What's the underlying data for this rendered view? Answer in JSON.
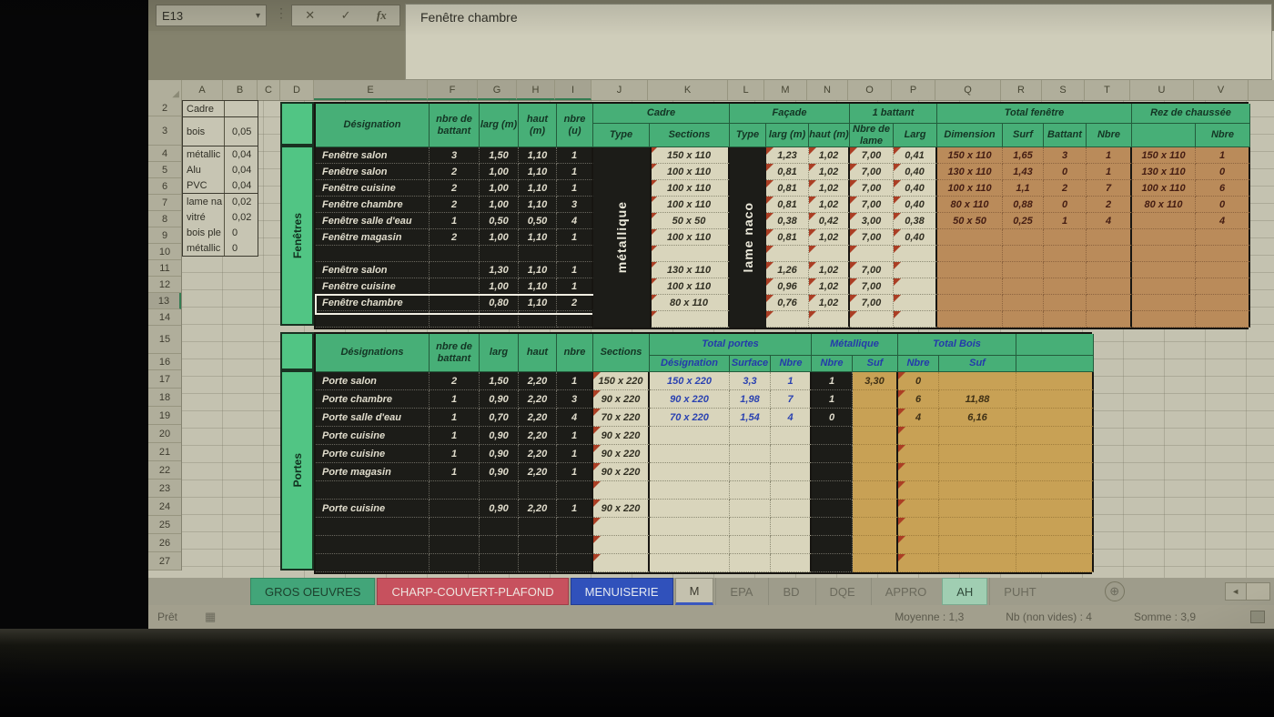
{
  "colors": {
    "header_green": "#3fb274",
    "band_green": "#49c981",
    "cell_black": "#191915",
    "cell_cream": "#dcd8bc",
    "cell_orange": "#bf8b55",
    "cell_gold": "#cda24e",
    "blue_text": "#2640bb",
    "tab_red": "#d04e5c",
    "tab_blue": "#2b50c5",
    "tab_green": "#3aa877"
  },
  "chrome": {
    "name_box": "E13",
    "formula_text": "Fenêtre chambre",
    "btn_cancel": "✕",
    "btn_enter": "✓",
    "btn_fx": "fx",
    "dots": "⋮",
    "icons": {
      "select_all": "◢",
      "name_dropdown": "▾",
      "new_sheet": "⊕",
      "tab_scroll_left": "◄",
      "status_grid": "▦"
    },
    "tabs": [
      {
        "label": "GROS OEUVRES",
        "style": "green"
      },
      {
        "label": "CHARP-COUVERT-PLAFOND",
        "style": "red"
      },
      {
        "label": "MENUISERIE",
        "style": "blue"
      },
      {
        "label": "M",
        "style": "active"
      },
      {
        "label": "EPA",
        "style": "plain"
      },
      {
        "label": "BD",
        "style": "plain"
      },
      {
        "label": "DQE",
        "style": "plain"
      },
      {
        "label": "APPRO",
        "style": "plain"
      },
      {
        "label": "AH",
        "style": "mint"
      },
      {
        "label": "PUHT",
        "style": "plain"
      }
    ],
    "status": {
      "left": "Prêt",
      "avg": "Moyenne : 1,3",
      "count": "Nb (non vides) : 4",
      "sum": "Somme : 3,9"
    }
  },
  "grid": {
    "col_letters": [
      "A",
      "B",
      "C",
      "D",
      "E",
      "F",
      "G",
      "H",
      "I",
      "J",
      "K",
      "L",
      "M",
      "N",
      "O",
      "P",
      "Q",
      "R",
      "S",
      "T",
      "U",
      "V"
    ],
    "row_numbers": [
      2,
      3,
      4,
      5,
      6,
      7,
      8,
      9,
      10,
      11,
      12,
      13,
      14,
      15,
      16,
      17,
      18,
      19,
      20,
      21,
      22,
      23,
      24,
      25,
      26,
      27
    ],
    "selected_cell": "E13"
  },
  "side_table": {
    "title": "Cadre",
    "rows": [
      {
        "label": "bois",
        "value": "0,05"
      },
      {
        "label": "métallic",
        "value": "0,04"
      },
      {
        "label": "Alu",
        "value": "0,04"
      },
      {
        "label": "PVC",
        "value": "0,04"
      },
      {
        "label": "lame na",
        "value": "0,02"
      },
      {
        "label": "vitré",
        "value": "0,02"
      },
      {
        "label": "bois ple",
        "value": "0"
      },
      {
        "label": "métallic",
        "value": "0"
      }
    ]
  },
  "fenetres": {
    "band": "Fenêtres",
    "headers": {
      "designation": "Désignation",
      "battant": "nbre de battant",
      "larg": "larg (m)",
      "haut": "haut (m)",
      "nbre": "nbre (u)",
      "cadre": "Cadre",
      "type": "Type",
      "sections": "Sections",
      "facade": "Façade",
      "type2": "Type",
      "flarg": "larg (m)",
      "fhaut": "haut (m)",
      "un_battant": "1 battant",
      "nbre_lame": "Nbre de lame",
      "blarg": "Larg",
      "total": "Total fenêtre",
      "dimension": "Dimension",
      "surf": "Surf",
      "battant2": "Battant",
      "nbre2": "Nbre",
      "rdc": "Rez de chaussée",
      "rnbre": "Nbre",
      "type_cadre": "métallique",
      "type_facade": "lame naco"
    },
    "rows": [
      {
        "des": "Fenêtre salon",
        "bat": "3",
        "larg": "1,50",
        "haut": "1,10",
        "nbre": "1",
        "sec": "150 x 110",
        "flarg": "1,23",
        "fhaut": "1,02",
        "lame": "7,00",
        "blarg": "0,41",
        "dim": "150 x 110",
        "surf": "1,65",
        "btn": "3",
        "tnb": "1",
        "rdim": "150 x 110",
        "rnb": "1"
      },
      {
        "des": "Fenêtre salon",
        "bat": "2",
        "larg": "1,00",
        "haut": "1,10",
        "nbre": "1",
        "sec": "100 x 110",
        "flarg": "0,81",
        "fhaut": "1,02",
        "lame": "7,00",
        "blarg": "0,40",
        "dim": "130 x 110",
        "surf": "1,43",
        "btn": "0",
        "tnb": "1",
        "rdim": "130 x 110",
        "rnb": "0"
      },
      {
        "des": "Fenêtre cuisine",
        "bat": "2",
        "larg": "1,00",
        "haut": "1,10",
        "nbre": "1",
        "sec": "100 x 110",
        "flarg": "0,81",
        "fhaut": "1,02",
        "lame": "7,00",
        "blarg": "0,40",
        "dim": "100 x 110",
        "surf": "1,1",
        "btn": "2",
        "tnb": "7",
        "rdim": "100 x 110",
        "rnb": "6"
      },
      {
        "des": "Fenêtre chambre",
        "bat": "2",
        "larg": "1,00",
        "haut": "1,10",
        "nbre": "3",
        "sec": "100 x 110",
        "flarg": "0,81",
        "fhaut": "1,02",
        "lame": "7,00",
        "blarg": "0,40",
        "dim": "80 x 110",
        "surf": "0,88",
        "btn": "0",
        "tnb": "2",
        "rdim": "80 x 110",
        "rnb": "0"
      },
      {
        "des": "Fenêtre salle d'eau",
        "bat": "1",
        "larg": "0,50",
        "haut": "0,50",
        "nbre": "4",
        "sec": "50 x 50",
        "flarg": "0,38",
        "fhaut": "0,42",
        "lame": "3,00",
        "blarg": "0,38",
        "dim": "50 x 50",
        "surf": "0,25",
        "btn": "1",
        "tnb": "4",
        "rdim": "",
        "rnb": "4"
      },
      {
        "des": "Fenêtre magasin",
        "bat": "2",
        "larg": "1,00",
        "haut": "1,10",
        "nbre": "1",
        "sec": "100 x 110",
        "flarg": "0,81",
        "fhaut": "1,02",
        "lame": "7,00",
        "blarg": "0,40",
        "dim": "",
        "surf": "",
        "btn": "",
        "tnb": "",
        "rdim": "",
        "rnb": ""
      },
      {
        "des": "",
        "bat": "",
        "larg": "",
        "haut": "",
        "nbre": "",
        "sec": "",
        "flarg": "",
        "fhaut": "",
        "lame": "",
        "blarg": "",
        "dim": "",
        "surf": "",
        "btn": "",
        "tnb": "",
        "rdim": "",
        "rnb": ""
      },
      {
        "des": "Fenêtre salon",
        "bat": "",
        "larg": "1,30",
        "haut": "1,10",
        "nbre": "1",
        "sec": "130 x 110",
        "flarg": "1,26",
        "fhaut": "1,02",
        "lame": "7,00",
        "blarg": "",
        "dim": "",
        "surf": "",
        "btn": "",
        "tnb": "",
        "rdim": "",
        "rnb": ""
      },
      {
        "des": "Fenêtre cuisine",
        "bat": "",
        "larg": "1,00",
        "haut": "1,10",
        "nbre": "1",
        "sec": "100 x 110",
        "flarg": "0,96",
        "fhaut": "1,02",
        "lame": "7,00",
        "blarg": "",
        "dim": "",
        "surf": "",
        "btn": "",
        "tnb": "",
        "rdim": "",
        "rnb": ""
      },
      {
        "des": "Fenêtre chambre",
        "bat": "",
        "larg": "0,80",
        "haut": "1,10",
        "nbre": "2",
        "sec": "80 x 110",
        "flarg": "0,76",
        "fhaut": "1,02",
        "lame": "7,00",
        "blarg": "",
        "dim": "",
        "surf": "",
        "btn": "",
        "tnb": "",
        "rdim": "",
        "rnb": ""
      },
      {
        "des": "",
        "bat": "",
        "larg": "",
        "haut": "",
        "nbre": "",
        "sec": "",
        "flarg": "",
        "fhaut": "",
        "lame": "",
        "blarg": "",
        "dim": "",
        "surf": "",
        "btn": "",
        "tnb": "",
        "rdim": "",
        "rnb": ""
      }
    ]
  },
  "portes": {
    "band": "Portes",
    "headers": {
      "designations": "Désignations",
      "battant": "nbre de battant",
      "larg": "larg",
      "haut": "haut",
      "nbre": "nbre",
      "sections": "Sections",
      "total": "Total portes",
      "tdes": "Désignation",
      "tsurf": "Surface",
      "tnb": "Nbre",
      "met": "Métallique",
      "mnb": "Nbre",
      "msuf": "Suf",
      "bois": "Total Bois",
      "bnb": "Nbre",
      "bsuf": "Suf"
    },
    "rows": [
      {
        "des": "Porte salon",
        "bat": "2",
        "larg": "1,50",
        "haut": "2,20",
        "nbre": "1",
        "sec": "150 x 220",
        "tdes": "150 x 220",
        "tsurf": "3,3",
        "tnb": "1",
        "mnb": "1",
        "msuf": "3,30",
        "bnb": "0",
        "bsuf": ""
      },
      {
        "des": "Porte chambre",
        "bat": "1",
        "larg": "0,90",
        "haut": "2,20",
        "nbre": "3",
        "sec": "90 x 220",
        "tdes": "90 x 220",
        "tsurf": "1,98",
        "tnb": "7",
        "mnb": "1",
        "msuf": "",
        "bnb": "6",
        "bsuf": "11,88"
      },
      {
        "des": "Porte salle d'eau",
        "bat": "1",
        "larg": "0,70",
        "haut": "2,20",
        "nbre": "4",
        "sec": "70 x 220",
        "tdes": "70 x 220",
        "tsurf": "1,54",
        "tnb": "4",
        "mnb": "0",
        "msuf": "",
        "bnb": "4",
        "bsuf": "6,16"
      },
      {
        "des": "Porte cuisine",
        "bat": "1",
        "larg": "0,90",
        "haut": "2,20",
        "nbre": "1",
        "sec": "90 x 220",
        "tdes": "",
        "tsurf": "",
        "tnb": "",
        "mnb": "",
        "msuf": "",
        "bnb": "",
        "bsuf": ""
      },
      {
        "des": "Porte cuisine",
        "bat": "1",
        "larg": "0,90",
        "haut": "2,20",
        "nbre": "1",
        "sec": "90 x 220",
        "tdes": "",
        "tsurf": "",
        "tnb": "",
        "mnb": "",
        "msuf": "",
        "bnb": "",
        "bsuf": ""
      },
      {
        "des": "Porte magasin",
        "bat": "1",
        "larg": "0,90",
        "haut": "2,20",
        "nbre": "1",
        "sec": "90 x 220",
        "tdes": "",
        "tsurf": "",
        "tnb": "",
        "mnb": "",
        "msuf": "",
        "bnb": "",
        "bsuf": ""
      },
      {
        "des": "",
        "bat": "",
        "larg": "",
        "haut": "",
        "nbre": "",
        "sec": "",
        "tdes": "",
        "tsurf": "",
        "tnb": "",
        "mnb": "",
        "msuf": "",
        "bnb": "",
        "bsuf": ""
      },
      {
        "des": "Porte cuisine",
        "bat": "",
        "larg": "0,90",
        "haut": "2,20",
        "nbre": "1",
        "sec": "90 x 220",
        "tdes": "",
        "tsurf": "",
        "tnb": "",
        "mnb": "",
        "msuf": "",
        "bnb": "",
        "bsuf": ""
      },
      {
        "des": "",
        "bat": "",
        "larg": "",
        "haut": "",
        "nbre": "",
        "sec": "",
        "tdes": "",
        "tsurf": "",
        "tnb": "",
        "mnb": "",
        "msuf": "",
        "bnb": "",
        "bsuf": ""
      },
      {
        "des": "",
        "bat": "",
        "larg": "",
        "haut": "",
        "nbre": "",
        "sec": "",
        "tdes": "",
        "tsurf": "",
        "tnb": "",
        "mnb": "",
        "msuf": "",
        "bnb": "",
        "bsuf": ""
      },
      {
        "des": "",
        "bat": "",
        "larg": "",
        "haut": "",
        "nbre": "",
        "sec": "",
        "tdes": "",
        "tsurf": "",
        "tnb": "",
        "mnb": "",
        "msuf": "",
        "bnb": "",
        "bsuf": ""
      }
    ]
  }
}
